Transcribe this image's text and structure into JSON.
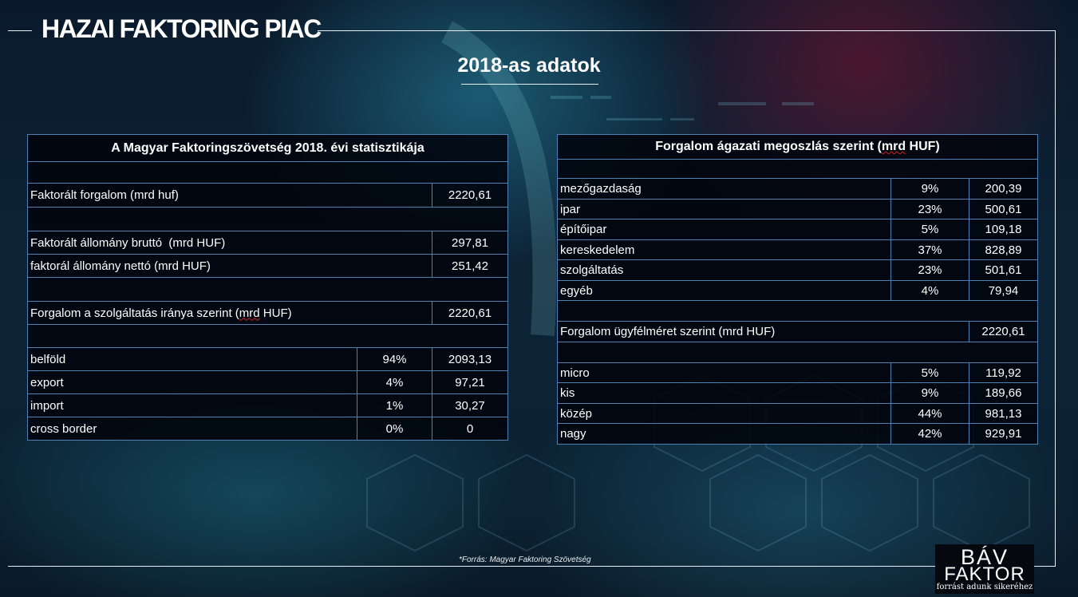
{
  "header": {
    "title": "HAZAI FAKTORING PIAC",
    "subtitle": "2018-as adatok"
  },
  "left_table": {
    "title": "A Magyar Faktoringszövetség 2018. évi statisztikája",
    "faktoralt_forgalom": {
      "label": "Faktorált forgalom (mrd huf)",
      "value": "2220,61"
    },
    "allomany_brutto": {
      "label": "Faktorált állomány bruttó  (mrd HUF)",
      "value": "297,81"
    },
    "allomany_netto": {
      "label": "faktorál állomány nettó (mrd HUF)",
      "value": "251,42"
    },
    "forgalom_irany": {
      "label_pre": "Forgalom a szolgáltatás iránya szerint (",
      "label_spell": "mrd",
      "label_post": " HUF)",
      "value": "2220,61"
    },
    "rows": [
      {
        "label": "belföld",
        "pct": "94%",
        "value": "2093,13"
      },
      {
        "label": "export",
        "pct": "4%",
        "value": "97,21"
      },
      {
        "label": "import",
        "pct": "1%",
        "value": "30,27"
      },
      {
        "label": "cross border",
        "pct": "0%",
        "value": "0"
      }
    ]
  },
  "right_table": {
    "title_pre": "Forgalom ágazati megoszlás szerint (",
    "title_spell": "mrd",
    "title_post": " HUF)",
    "sector_rows": [
      {
        "label": "mezőgazdaság",
        "pct": "9%",
        "value": "200,39"
      },
      {
        "label": "ipar",
        "pct": "23%",
        "value": "500,61"
      },
      {
        "label": "építőipar",
        "pct": "5%",
        "value": "109,18"
      },
      {
        "label": "kereskedelem",
        "pct": "37%",
        "value": "828,89"
      },
      {
        "label": "szolgáltatás",
        "pct": "23%",
        "value": "501,61"
      },
      {
        "label": "egyéb",
        "pct": "4%",
        "value": "79,94"
      }
    ],
    "client_size": {
      "label": "Forgalom ügyfélméret szerint (mrd HUF)",
      "value": "2220,61"
    },
    "size_rows": [
      {
        "label": "micro",
        "pct": "5%",
        "value": "119,92"
      },
      {
        "label": "kis",
        "pct": "9%",
        "value": "189,66"
      },
      {
        "label": "közép",
        "pct": "44%",
        "value": "981,13"
      },
      {
        "label": "nagy",
        "pct": "42%",
        "value": "929,91"
      }
    ]
  },
  "footer": {
    "source": "*Forrás: Magyar Faktoring Szövetség",
    "logo_line1": "BÁV",
    "logo_line2": "FAKTOR",
    "logo_tagline": "forrást adunk sikeréhez"
  }
}
